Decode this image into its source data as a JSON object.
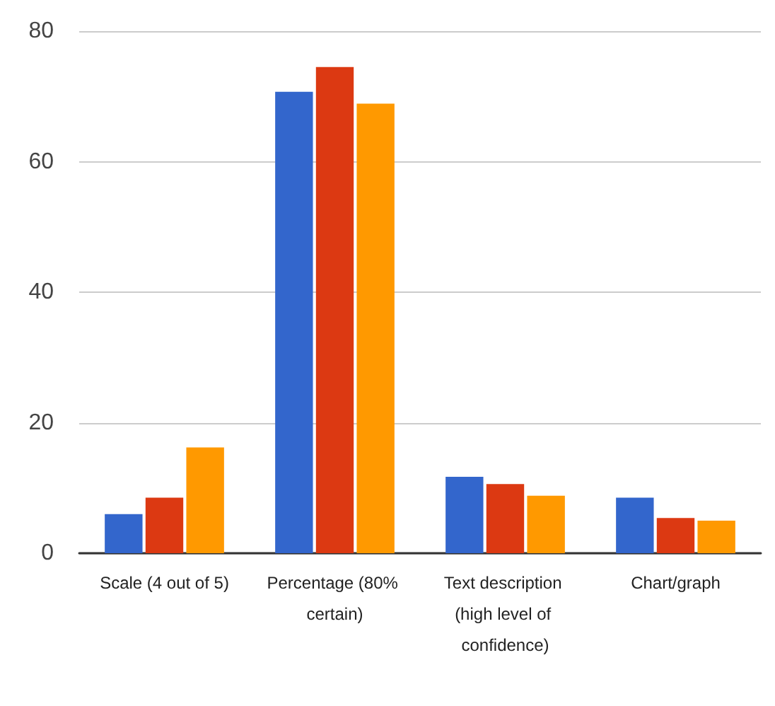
{
  "chart_data": {
    "type": "bar",
    "categories": [
      "Scale (4 out of 5)",
      "Percentage (80% certain)",
      "Text description (high level of confidence)",
      "Chart/graph"
    ],
    "series": [
      {
        "color": "#3366cc",
        "values": [
          6.0,
          70.7,
          11.7,
          8.5
        ]
      },
      {
        "color": "#dc3912",
        "values": [
          8.5,
          74.5,
          10.6,
          5.4
        ]
      },
      {
        "color": "#ff9900",
        "values": [
          16.2,
          68.9,
          8.8,
          5.0
        ]
      }
    ],
    "ylim": [
      0,
      80
    ],
    "yticks": [
      0,
      20,
      40,
      60,
      80
    ],
    "grid": "y"
  }
}
